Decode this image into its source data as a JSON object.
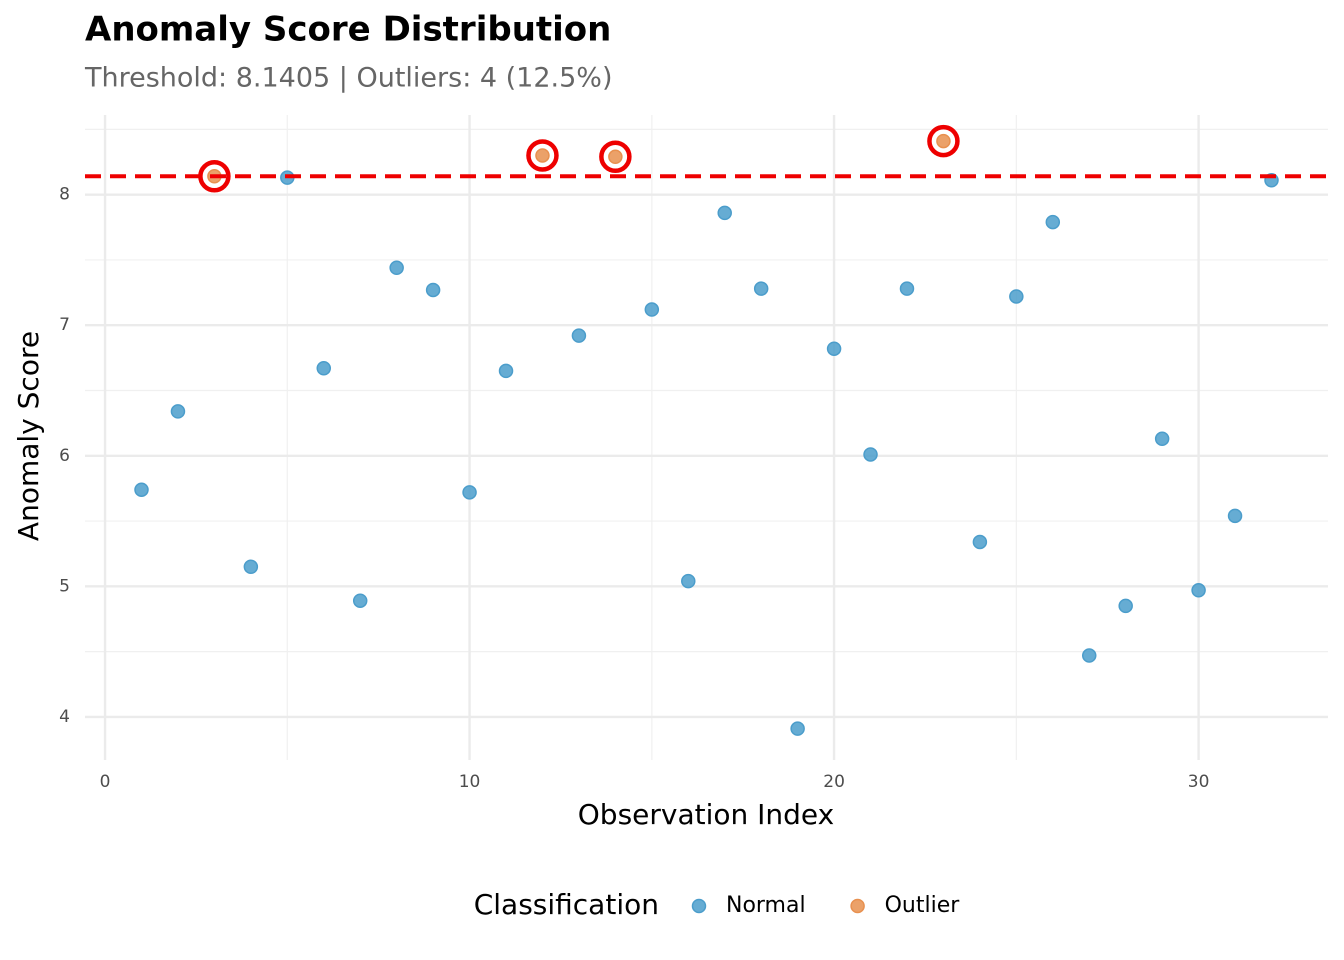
{
  "chart_data": {
    "type": "scatter",
    "title": "Anomaly Score Distribution",
    "subtitle": "Threshold: 8.1405 | Outliers: 4 (12.5%)",
    "x_label": "Observation Index",
    "y_label": "Anomaly Score",
    "legend_title": "Classification",
    "legend_position": "bottom",
    "grid": true,
    "threshold": 8.1405,
    "threshold_color": "#ee0000",
    "highlight_color": "#ee0000",
    "xlim": [
      -0.55,
      33.55
    ],
    "ylim": [
      3.67,
      8.61
    ],
    "xticks": [
      0,
      10,
      20,
      30
    ],
    "yticks": [
      4,
      5,
      6,
      7,
      8
    ],
    "xminorticks": [
      5,
      15,
      25
    ],
    "yminorticks": [
      4.5,
      5.5,
      6.5,
      7.5,
      8.5
    ],
    "series": [
      {
        "name": "Normal",
        "color": "#4b9dcb",
        "x": [
          1,
          2,
          4,
          5,
          6,
          7,
          8,
          9,
          10,
          11,
          13,
          15,
          16,
          17,
          18,
          19,
          20,
          21,
          22,
          24,
          25,
          26,
          27,
          28,
          29,
          30,
          31,
          32
        ],
        "values": [
          5.74,
          6.34,
          5.15,
          8.13,
          6.67,
          4.89,
          7.44,
          7.27,
          5.72,
          6.65,
          6.92,
          7.12,
          5.04,
          7.86,
          7.28,
          3.91,
          6.82,
          6.01,
          7.28,
          5.34,
          7.22,
          7.79,
          4.47,
          4.85,
          6.13,
          4.97,
          5.54,
          8.11
        ]
      },
      {
        "name": "Outlier",
        "color": "#e8904f",
        "highlight": true,
        "x": [
          3,
          12,
          14,
          23
        ],
        "values": [
          8.1405,
          8.3,
          8.29,
          8.41
        ]
      }
    ]
  }
}
